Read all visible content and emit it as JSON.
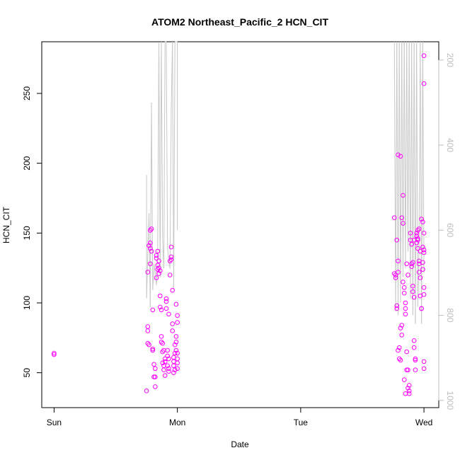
{
  "chart_data": {
    "type": "scatter",
    "title": "ATOM2 Northeast_Pacific_2 HCN_CIT",
    "xlabel": "Date",
    "ylabel": "HCN_CIT",
    "x_ticks": [
      "Sun",
      "Mon",
      "Tue",
      "Wed"
    ],
    "xlim": [
      -0.1,
      3.12
    ],
    "ylim": [
      25,
      287
    ],
    "y_ticks": [
      50,
      100,
      150,
      200,
      250
    ],
    "right_axis": {
      "ticks": [
        200,
        400,
        600,
        800,
        1000
      ],
      "lim": [
        1017,
        157
      ],
      "reversed": true,
      "color": "#bdbdbd"
    },
    "colors": {
      "points": "#ff00ff",
      "line": "#c8c8c8",
      "axis": "#000000"
    },
    "series": [
      {
        "type": "scatter",
        "points": [
          [
            0.0,
            64
          ],
          [
            0.0,
            63
          ],
          [
            0.75,
            37
          ],
          [
            0.76,
            80
          ],
          [
            0.76,
            83
          ],
          [
            0.76,
            71
          ],
          [
            0.77,
            70
          ],
          [
            0.76,
            122
          ],
          [
            0.77,
            141
          ],
          [
            0.78,
            143
          ],
          [
            0.78,
            152
          ],
          [
            0.79,
            153
          ],
          [
            0.78,
            139
          ],
          [
            0.79,
            137
          ],
          [
            0.78,
            128
          ],
          [
            0.8,
            95
          ],
          [
            0.8,
            67
          ],
          [
            0.8,
            66
          ],
          [
            0.81,
            56
          ],
          [
            0.81,
            47
          ],
          [
            0.82,
            47
          ],
          [
            0.82,
            40
          ],
          [
            0.82,
            53
          ],
          [
            0.83,
            118
          ],
          [
            0.83,
            132
          ],
          [
            0.83,
            134
          ],
          [
            0.84,
            127
          ],
          [
            0.84,
            124
          ],
          [
            0.85,
            125
          ],
          [
            0.85,
            121
          ],
          [
            0.86,
            123
          ],
          [
            0.86,
            105
          ],
          [
            0.86,
            97
          ],
          [
            0.87,
            95
          ],
          [
            0.87,
            76
          ],
          [
            0.87,
            72
          ],
          [
            0.88,
            71
          ],
          [
            0.88,
            65
          ],
          [
            0.88,
            57
          ],
          [
            0.89,
            55
          ],
          [
            0.89,
            52
          ],
          [
            0.9,
            58
          ],
          [
            0.9,
            60
          ],
          [
            0.9,
            48
          ],
          [
            0.91,
            101
          ],
          [
            0.91,
            103
          ],
          [
            0.91,
            96
          ],
          [
            0.92,
            66
          ],
          [
            0.92,
            62
          ],
          [
            0.92,
            55
          ],
          [
            0.93,
            53
          ],
          [
            0.93,
            51
          ],
          [
            0.94,
            130
          ],
          [
            0.94,
            120
          ],
          [
            0.95,
            131
          ],
          [
            0.95,
            133
          ],
          [
            0.95,
            140
          ],
          [
            0.96,
            109
          ],
          [
            0.96,
            85
          ],
          [
            0.96,
            80
          ],
          [
            0.97,
            58
          ],
          [
            0.97,
            55
          ],
          [
            0.97,
            50
          ],
          [
            0.98,
            52
          ],
          [
            0.98,
            70
          ],
          [
            0.99,
            99
          ],
          [
            0.99,
            72
          ],
          [
            0.99,
            76
          ],
          [
            1.0,
            91
          ],
          [
            1.0,
            86
          ],
          [
            1.0,
            60
          ],
          [
            1.0,
            57
          ],
          [
            1.0,
            53
          ],
          [
            0.84,
            137
          ],
          [
            0.85,
            130
          ],
          [
            0.89,
            66
          ],
          [
            0.93,
            92
          ],
          [
            0.93,
            60
          ],
          [
            0.98,
            64
          ],
          [
            0.97,
            61
          ],
          [
            1.0,
            64
          ],
          [
            0.99,
            66
          ],
          [
            2.76,
            161
          ],
          [
            2.77,
            118
          ],
          [
            2.77,
            120
          ],
          [
            2.78,
            98
          ],
          [
            2.78,
            96
          ],
          [
            2.76,
            121
          ],
          [
            2.78,
            145
          ],
          [
            2.79,
            130
          ],
          [
            2.79,
            122
          ],
          [
            2.8,
            68
          ],
          [
            2.79,
            66
          ],
          [
            2.8,
            60
          ],
          [
            2.81,
            59
          ],
          [
            2.81,
            82
          ],
          [
            2.82,
            84
          ],
          [
            2.82,
            77
          ],
          [
            2.79,
            206
          ],
          [
            2.81,
            205
          ],
          [
            2.82,
            161
          ],
          [
            2.83,
            157
          ],
          [
            2.83,
            177
          ],
          [
            2.83,
            115
          ],
          [
            2.84,
            111
          ],
          [
            2.84,
            107
          ],
          [
            2.85,
            100
          ],
          [
            2.85,
            96
          ],
          [
            2.85,
            92
          ],
          [
            2.86,
            65
          ],
          [
            2.86,
            52
          ],
          [
            2.87,
            52
          ],
          [
            2.87,
            39
          ],
          [
            2.88,
            41
          ],
          [
            2.88,
            37
          ],
          [
            2.88,
            35
          ],
          [
            2.84,
            45
          ],
          [
            2.85,
            35
          ],
          [
            2.89,
            145
          ],
          [
            2.89,
            150
          ],
          [
            2.9,
            142
          ],
          [
            2.9,
            128
          ],
          [
            2.9,
            126
          ],
          [
            2.91,
            112
          ],
          [
            2.91,
            108
          ],
          [
            2.92,
            104
          ],
          [
            2.92,
            73
          ],
          [
            2.92,
            68
          ],
          [
            2.93,
            60
          ],
          [
            2.93,
            52
          ],
          [
            2.93,
            59
          ],
          [
            2.94,
            150
          ],
          [
            2.94,
            148
          ],
          [
            2.95,
            152
          ],
          [
            2.95,
            146
          ],
          [
            2.95,
            139
          ],
          [
            2.96,
            130
          ],
          [
            2.96,
            128
          ],
          [
            2.96,
            122
          ],
          [
            2.97,
            118
          ],
          [
            2.97,
            105
          ],
          [
            2.98,
            96
          ],
          [
            2.98,
            96
          ],
          [
            2.98,
            160
          ],
          [
            2.99,
            158
          ],
          [
            2.99,
            140
          ],
          [
            3.0,
            136
          ],
          [
            3.0,
            111
          ],
          [
            3.0,
            106
          ],
          [
            3.0,
            58
          ],
          [
            3.0,
            53
          ],
          [
            2.99,
            124
          ],
          [
            2.97,
            137
          ],
          [
            2.91,
            129
          ],
          [
            2.87,
            120
          ],
          [
            2.86,
            128
          ],
          [
            2.94,
            143
          ],
          [
            2.96,
            153
          ],
          [
            3.0,
            150
          ],
          [
            3.0,
            138
          ],
          [
            2.99,
            129
          ],
          [
            2.95,
            145
          ],
          [
            2.92,
            145
          ],
          [
            3.0,
            277
          ],
          [
            3.0,
            257
          ]
        ]
      },
      {
        "type": "line",
        "axis": "right",
        "points": [
          [
            0.75,
            470
          ],
          [
            0.75,
            760
          ],
          [
            0.77,
            560
          ],
          [
            0.78,
            780
          ],
          [
            0.79,
            300
          ],
          [
            0.8,
            740
          ],
          [
            0.81,
            680
          ],
          [
            0.82,
            700
          ],
          [
            0.83,
            730
          ],
          [
            0.84,
            650
          ],
          [
            0.85,
            160
          ],
          [
            0.86,
            710
          ],
          [
            0.87,
            157
          ],
          [
            0.88,
            620
          ],
          [
            0.89,
            690
          ],
          [
            0.9,
            157
          ],
          [
            0.91,
            157
          ],
          [
            0.92,
            640
          ],
          [
            0.93,
            670
          ],
          [
            0.94,
            690
          ],
          [
            0.95,
            320
          ],
          [
            0.96,
            157
          ],
          [
            0.97,
            740
          ],
          [
            0.98,
            157
          ],
          [
            0.99,
            157
          ],
          [
            1.0,
            157
          ],
          [
            1.0,
            600
          ],
          [
            2.76,
            157
          ],
          [
            2.77,
            790
          ],
          [
            2.78,
            157
          ],
          [
            2.79,
            800
          ],
          [
            2.8,
            157
          ],
          [
            2.81,
            770
          ],
          [
            2.82,
            157
          ],
          [
            2.83,
            710
          ],
          [
            2.84,
            157
          ],
          [
            2.85,
            690
          ],
          [
            2.86,
            157
          ],
          [
            2.87,
            650
          ],
          [
            2.88,
            157
          ],
          [
            2.89,
            760
          ],
          [
            2.9,
            157
          ],
          [
            2.91,
            800
          ],
          [
            2.92,
            157
          ],
          [
            2.93,
            820
          ],
          [
            2.94,
            157
          ],
          [
            2.95,
            780
          ],
          [
            2.96,
            640
          ],
          [
            2.97,
            157
          ],
          [
            2.98,
            820
          ],
          [
            2.99,
            157
          ],
          [
            3.0,
            700
          ]
        ]
      }
    ]
  }
}
